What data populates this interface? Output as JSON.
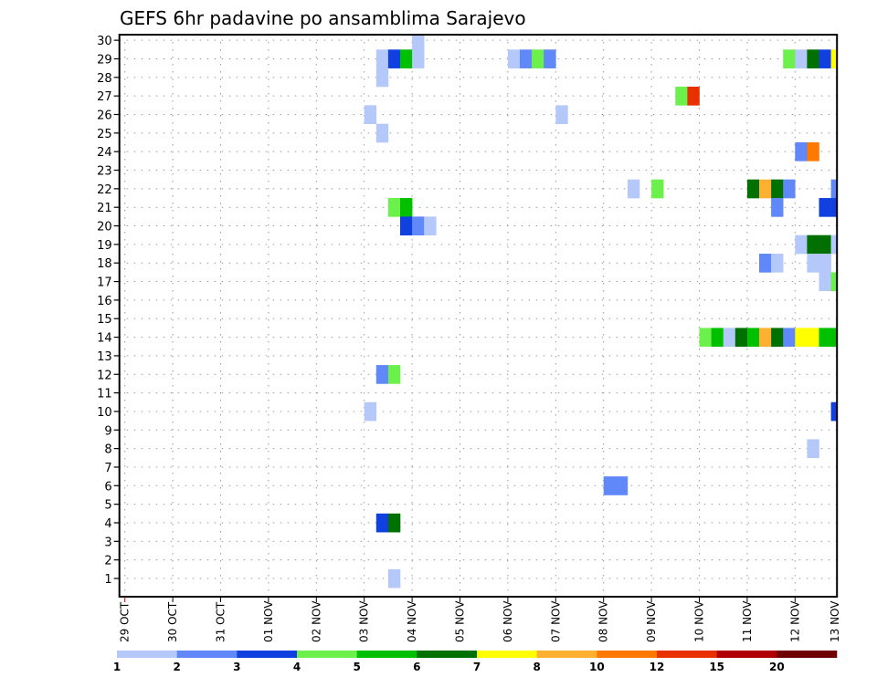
{
  "chart_data": {
    "type": "heatmap",
    "title": "GEFS 6hr padavine po ansamblima Sarajevo",
    "xlabel": "",
    "ylabel": "",
    "x_unit": "6-hour step since 29 OCT 00Z",
    "x_tick_labels": [
      "29 OCT",
      "30 OCT",
      "31 OCT",
      "01 NOV",
      "02 NOV",
      "03 NOV",
      "04 NOV",
      "05 NOV",
      "06 NOV",
      "07 NOV",
      "08 NOV",
      "09 NOV",
      "10 NOV",
      "11 NOV",
      "12 NOV",
      "13 NOV"
    ],
    "y_tick_labels": [
      "1",
      "2",
      "3",
      "4",
      "5",
      "6",
      "7",
      "8",
      "9",
      "10",
      "11",
      "12",
      "13",
      "14",
      "15",
      "16",
      "17",
      "18",
      "19",
      "20",
      "21",
      "22",
      "23",
      "24",
      "25",
      "26",
      "27",
      "28",
      "29",
      "30"
    ],
    "ylim": [
      1,
      30
    ],
    "grid": true,
    "colorbar": {
      "levels": [
        "1",
        "2",
        "3",
        "4",
        "5",
        "6",
        "7",
        "8",
        "10",
        "12",
        "15",
        "20"
      ],
      "colors": [
        "#b4c8fa",
        "#6088f8",
        "#1040e0",
        "#6cf04c",
        "#00c000",
        "#007000",
        "#ffff00",
        "#ffb030",
        "#ff7800",
        "#e83000",
        "#b00000",
        "#700000"
      ],
      "placement": "bottom"
    },
    "cells": [
      {
        "member": 30,
        "step": 24,
        "bin": 0
      },
      {
        "member": 29,
        "step": 21,
        "bin": 0
      },
      {
        "member": 29,
        "step": 22,
        "bin": 2
      },
      {
        "member": 29,
        "step": 23,
        "bin": 4
      },
      {
        "member": 29,
        "step": 24,
        "bin": 0
      },
      {
        "member": 29,
        "step": 32,
        "bin": 0
      },
      {
        "member": 29,
        "step": 33,
        "bin": 1
      },
      {
        "member": 29,
        "step": 34,
        "bin": 3
      },
      {
        "member": 29,
        "step": 35,
        "bin": 1
      },
      {
        "member": 29,
        "step": 55,
        "bin": 3
      },
      {
        "member": 29,
        "step": 56,
        "bin": 0
      },
      {
        "member": 29,
        "step": 57,
        "bin": 5
      },
      {
        "member": 29,
        "step": 58,
        "bin": 2
      },
      {
        "member": 29,
        "step": 59,
        "bin": 6
      },
      {
        "member": 28,
        "step": 21,
        "bin": 0
      },
      {
        "member": 27,
        "step": 46,
        "bin": 3
      },
      {
        "member": 27,
        "step": 47,
        "bin": 9
      },
      {
        "member": 26,
        "step": 20,
        "bin": 0
      },
      {
        "member": 26,
        "step": 36,
        "bin": 0
      },
      {
        "member": 25,
        "step": 21,
        "bin": 0
      },
      {
        "member": 24,
        "step": 56,
        "bin": 1
      },
      {
        "member": 24,
        "step": 57,
        "bin": 8
      },
      {
        "member": 22,
        "step": 42,
        "bin": 0
      },
      {
        "member": 22,
        "step": 44,
        "bin": 3
      },
      {
        "member": 22,
        "step": 52,
        "bin": 5
      },
      {
        "member": 22,
        "step": 53,
        "bin": 7
      },
      {
        "member": 22,
        "step": 54,
        "bin": 5
      },
      {
        "member": 22,
        "step": 55,
        "bin": 1
      },
      {
        "member": 22,
        "step": 59,
        "bin": 1
      },
      {
        "member": 21,
        "step": 22,
        "bin": 3
      },
      {
        "member": 21,
        "step": 23,
        "bin": 4
      },
      {
        "member": 21,
        "step": 54,
        "bin": 1
      },
      {
        "member": 21,
        "step": 58,
        "bin": 2
      },
      {
        "member": 21,
        "step": 59,
        "bin": 2
      },
      {
        "member": 20,
        "step": 23,
        "bin": 2
      },
      {
        "member": 20,
        "step": 24,
        "bin": 1
      },
      {
        "member": 20,
        "step": 25,
        "bin": 0
      },
      {
        "member": 19,
        "step": 56,
        "bin": 0
      },
      {
        "member": 19,
        "step": 57,
        "bin": 5
      },
      {
        "member": 19,
        "step": 58,
        "bin": 5
      },
      {
        "member": 19,
        "step": 59,
        "bin": 0
      },
      {
        "member": 18,
        "step": 53,
        "bin": 1
      },
      {
        "member": 18,
        "step": 54,
        "bin": 0
      },
      {
        "member": 18,
        "step": 57,
        "bin": 0
      },
      {
        "member": 18,
        "step": 58,
        "bin": 0
      },
      {
        "member": 17,
        "step": 58,
        "bin": 0
      },
      {
        "member": 17,
        "step": 59,
        "bin": 3
      },
      {
        "member": 14,
        "step": 48,
        "bin": 3
      },
      {
        "member": 14,
        "step": 49,
        "bin": 4
      },
      {
        "member": 14,
        "step": 50,
        "bin": 0
      },
      {
        "member": 14,
        "step": 51,
        "bin": 5
      },
      {
        "member": 14,
        "step": 52,
        "bin": 4
      },
      {
        "member": 14,
        "step": 53,
        "bin": 7
      },
      {
        "member": 14,
        "step": 54,
        "bin": 5
      },
      {
        "member": 14,
        "step": 55,
        "bin": 1
      },
      {
        "member": 14,
        "step": 56,
        "bin": 6
      },
      {
        "member": 14,
        "step": 57,
        "bin": 6
      },
      {
        "member": 14,
        "step": 58,
        "bin": 4
      },
      {
        "member": 14,
        "step": 59,
        "bin": 4
      },
      {
        "member": 12,
        "step": 21,
        "bin": 1
      },
      {
        "member": 12,
        "step": 22,
        "bin": 3
      },
      {
        "member": 10,
        "step": 20,
        "bin": 0
      },
      {
        "member": 10,
        "step": 59,
        "bin": 2
      },
      {
        "member": 8,
        "step": 57,
        "bin": 0
      },
      {
        "member": 6,
        "step": 40,
        "bin": 1
      },
      {
        "member": 6,
        "step": 41,
        "bin": 1
      },
      {
        "member": 4,
        "step": 21,
        "bin": 2
      },
      {
        "member": 4,
        "step": 22,
        "bin": 5
      },
      {
        "member": 1,
        "step": 22,
        "bin": 0
      }
    ]
  }
}
